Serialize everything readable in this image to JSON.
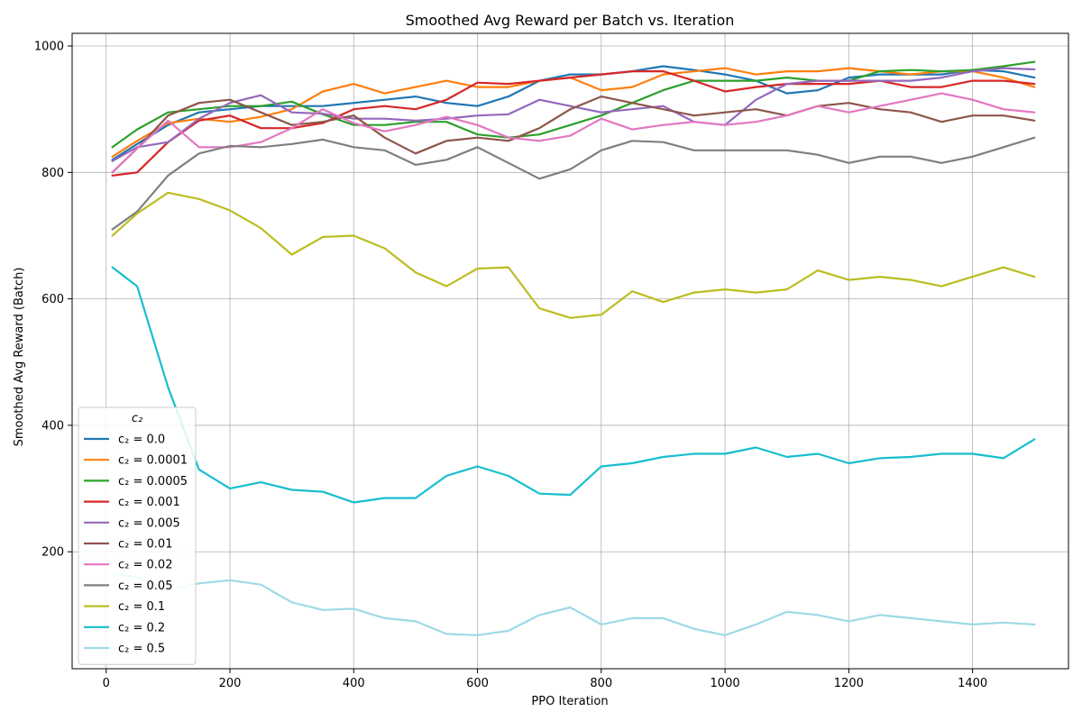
{
  "chart_data": {
    "type": "line",
    "title": "Smoothed Avg Reward per Batch vs. Iteration",
    "xlabel": "PPO Iteration",
    "ylabel": "Smoothed Avg Reward (Batch)",
    "xlim": [
      -55,
      1555
    ],
    "ylim": [
      15,
      1020
    ],
    "xticks": [
      0,
      200,
      400,
      600,
      800,
      1000,
      1200,
      1400
    ],
    "yticks": [
      200,
      400,
      600,
      800,
      1000
    ],
    "grid": true,
    "legend": {
      "title": "c₂",
      "placement": "lower-left"
    },
    "x": [
      10,
      50,
      100,
      150,
      200,
      250,
      300,
      350,
      400,
      450,
      500,
      550,
      600,
      650,
      700,
      750,
      800,
      850,
      900,
      950,
      1000,
      1050,
      1100,
      1150,
      1200,
      1250,
      1300,
      1350,
      1400,
      1450,
      1500
    ],
    "series": [
      {
        "name": "c₂ = 0.0",
        "color": "#1f77b4",
        "values": [
          820,
          845,
          875,
          895,
          900,
          905,
          905,
          905,
          910,
          915,
          920,
          910,
          905,
          920,
          945,
          955,
          955,
          960,
          968,
          962,
          955,
          945,
          925,
          930,
          950,
          955,
          955,
          955,
          962,
          960,
          950
        ]
      },
      {
        "name": "c₂ = 0.0001",
        "color": "#ff7f0e",
        "values": [
          825,
          850,
          878,
          885,
          880,
          888,
          900,
          928,
          940,
          925,
          935,
          945,
          935,
          935,
          945,
          950,
          930,
          935,
          955,
          960,
          965,
          955,
          960,
          960,
          965,
          960,
          955,
          960,
          960,
          950,
          935
        ]
      },
      {
        "name": "c₂ = 0.0005",
        "color": "#2ca02c",
        "values": [
          840,
          868,
          895,
          900,
          905,
          905,
          912,
          892,
          875,
          875,
          880,
          880,
          860,
          855,
          860,
          875,
          890,
          910,
          930,
          945,
          945,
          945,
          950,
          945,
          945,
          960,
          962,
          960,
          962,
          968,
          975
        ]
      },
      {
        "name": "c₂ = 0.001",
        "color": "#d62728",
        "values": [
          795,
          800,
          848,
          882,
          890,
          870,
          870,
          878,
          900,
          905,
          900,
          915,
          942,
          940,
          945,
          950,
          955,
          960,
          960,
          945,
          928,
          935,
          940,
          940,
          940,
          945,
          935,
          935,
          945,
          945,
          940
        ]
      },
      {
        "name": "c₂ = 0.005",
        "color": "#9467bd",
        "values": [
          818,
          840,
          848,
          885,
          910,
          922,
          895,
          893,
          885,
          885,
          882,
          885,
          890,
          892,
          915,
          905,
          895,
          900,
          905,
          880,
          875,
          915,
          940,
          945,
          945,
          945,
          945,
          950,
          960,
          965,
          963
        ]
      },
      {
        "name": "c₂ = 0.01",
        "color": "#8c564b",
        "values": [
          800,
          838,
          890,
          910,
          915,
          895,
          875,
          880,
          890,
          855,
          830,
          850,
          855,
          850,
          870,
          900,
          920,
          910,
          900,
          890,
          895,
          900,
          890,
          905,
          910,
          900,
          895,
          880,
          890,
          890,
          882
        ]
      },
      {
        "name": "c₂ = 0.02",
        "color": "#e377c2",
        "values": [
          800,
          838,
          882,
          840,
          840,
          848,
          870,
          900,
          878,
          865,
          875,
          888,
          875,
          855,
          850,
          858,
          885,
          868,
          875,
          880,
          875,
          880,
          890,
          905,
          895,
          905,
          915,
          925,
          915,
          900,
          895
        ]
      },
      {
        "name": "c₂ = 0.05",
        "color": "#7f7f7f",
        "values": [
          710,
          738,
          795,
          830,
          842,
          840,
          845,
          852,
          840,
          835,
          812,
          820,
          840,
          815,
          790,
          805,
          835,
          850,
          848,
          835,
          835,
          835,
          835,
          828,
          815,
          825,
          825,
          815,
          825,
          840,
          855
        ]
      },
      {
        "name": "c₂ = 0.1",
        "color": "#bcbd22",
        "values": [
          700,
          735,
          768,
          758,
          740,
          712,
          670,
          698,
          700,
          680,
          642,
          620,
          648,
          650,
          585,
          570,
          575,
          612,
          595,
          610,
          615,
          610,
          615,
          645,
          630,
          635,
          630,
          620,
          635,
          650,
          635
        ]
      },
      {
        "name": "c₂ = 0.2",
        "color": "#17becf",
        "values": [
          650,
          620,
          460,
          330,
          300,
          310,
          298,
          295,
          278,
          285,
          285,
          320,
          335,
          320,
          292,
          290,
          335,
          340,
          350,
          355,
          355,
          365,
          350,
          355,
          340,
          348,
          350,
          355,
          355,
          348,
          378
        ]
      },
      {
        "name": "c₂ = 0.5",
        "color": "#9edae5",
        "values": [
          165,
          160,
          140,
          150,
          155,
          148,
          120,
          108,
          110,
          95,
          90,
          70,
          68,
          75,
          100,
          112,
          85,
          95,
          95,
          78,
          68,
          85,
          105,
          100,
          90,
          100,
          95,
          90,
          85,
          88,
          85
        ]
      }
    ]
  }
}
